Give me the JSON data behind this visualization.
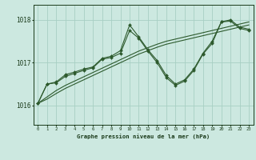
{
  "title": "Graphe pression niveau de la mer (hPa)",
  "bg_color": "#cce8e0",
  "grid_color": "#a8cfc4",
  "line_color": "#2d5a2d",
  "marker_color": "#2d5a2d",
  "text_color": "#1a3a1a",
  "xlim": [
    -0.5,
    23.5
  ],
  "ylim": [
    1015.55,
    1018.35
  ],
  "yticks": [
    1016,
    1017,
    1018
  ],
  "xticks": [
    0,
    1,
    2,
    3,
    4,
    5,
    6,
    7,
    8,
    9,
    10,
    11,
    12,
    13,
    14,
    15,
    16,
    17,
    18,
    19,
    20,
    21,
    22,
    23
  ],
  "series1": [
    1016.05,
    1016.5,
    1016.53,
    1016.68,
    1016.75,
    1016.82,
    1016.88,
    1017.08,
    1017.12,
    1017.22,
    1017.75,
    1017.57,
    1017.27,
    1017.0,
    1016.65,
    1016.47,
    1016.57,
    1016.82,
    1017.2,
    1017.45,
    1017.95,
    1017.97,
    1017.8,
    1017.75
  ],
  "series2": [
    1016.05,
    1016.5,
    1016.55,
    1016.72,
    1016.78,
    1016.85,
    1016.9,
    1017.1,
    1017.15,
    1017.28,
    1017.88,
    1017.6,
    1017.3,
    1017.05,
    1016.7,
    1016.5,
    1016.6,
    1016.85,
    1017.22,
    1017.5,
    1017.95,
    1018.0,
    1017.83,
    1017.78
  ],
  "trend1": [
    1016.05,
    1016.2,
    1016.35,
    1016.47,
    1016.57,
    1016.67,
    1016.77,
    1016.87,
    1016.97,
    1017.07,
    1017.17,
    1017.27,
    1017.35,
    1017.43,
    1017.5,
    1017.55,
    1017.6,
    1017.65,
    1017.7,
    1017.75,
    1017.8,
    1017.85,
    1017.9,
    1017.95
  ],
  "trend2": [
    1016.05,
    1016.15,
    1016.28,
    1016.4,
    1016.5,
    1016.6,
    1016.7,
    1016.8,
    1016.9,
    1017.0,
    1017.1,
    1017.2,
    1017.28,
    1017.36,
    1017.43,
    1017.48,
    1017.53,
    1017.58,
    1017.63,
    1017.68,
    1017.73,
    1017.78,
    1017.83,
    1017.88
  ]
}
